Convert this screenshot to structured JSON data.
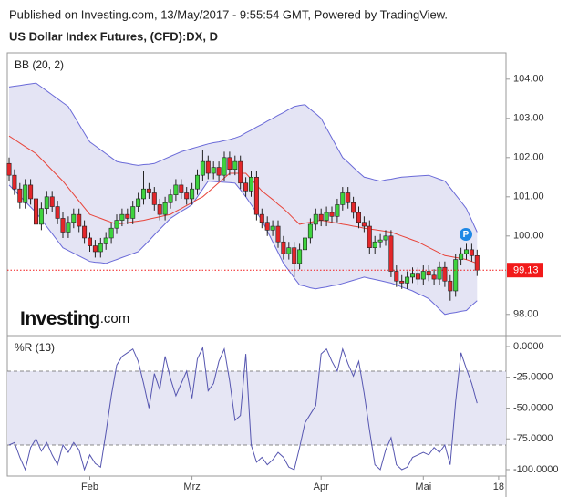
{
  "header": "Published on Investing.com, 13/May/2017 - 9:55:54 GMT, Powered by TradingView.",
  "logo": {
    "brand": "Investing",
    "suffix": ".com"
  },
  "chart_data": [
    {
      "type": "candlestick",
      "title": "US Dollar Index Futures, (CFD):DX, D",
      "indicator": "BB (20, 2)",
      "open": [
        101.85,
        101.55,
        101.2,
        100.85,
        101.3,
        100.95,
        100.3,
        100.7,
        101.0,
        100.75,
        100.45,
        100.1,
        100.35,
        100.55,
        100.25,
        99.95,
        99.75,
        99.6,
        99.8,
        99.95,
        100.2,
        100.4,
        100.55,
        100.45,
        100.75,
        100.95,
        101.2,
        101.1,
        100.8,
        100.55,
        100.85,
        101.05,
        101.3,
        101.1,
        100.95,
        101.2,
        101.55,
        101.9,
        101.6,
        101.75,
        101.55,
        102.0,
        101.7,
        101.9,
        101.35,
        101.15,
        101.5,
        100.55,
        100.35,
        100.15,
        100.25,
        99.85,
        99.55,
        99.7,
        99.3,
        99.65,
        99.95,
        100.3,
        100.55,
        100.4,
        100.6,
        100.5,
        100.8,
        101.1,
        100.85,
        100.6,
        100.35,
        100.25,
        99.7,
        99.85,
        99.9,
        100.0,
        99.1,
        98.85,
        98.8,
        98.95,
        99.05,
        98.9,
        99.1,
        99.0,
        98.9,
        99.2,
        98.85,
        98.6,
        99.4,
        99.55,
        99.65,
        99.5,
        null,
        null,
        null,
        null
      ],
      "high": [
        102.0,
        101.7,
        101.35,
        101.45,
        101.45,
        101.1,
        100.85,
        101.15,
        101.15,
        100.9,
        100.6,
        100.5,
        100.7,
        100.7,
        100.4,
        100.1,
        99.9,
        99.95,
        100.1,
        100.35,
        100.55,
        100.7,
        100.7,
        100.9,
        101.1,
        101.65,
        101.35,
        101.25,
        100.95,
        101.0,
        101.2,
        101.45,
        101.45,
        101.25,
        101.35,
        101.7,
        102.2,
        102.05,
        101.9,
        101.9,
        102.15,
        102.15,
        102.05,
        102.05,
        101.5,
        101.65,
        101.65,
        100.7,
        100.5,
        100.4,
        100.4,
        100.0,
        99.85,
        99.85,
        99.8,
        100.1,
        100.45,
        100.7,
        100.7,
        100.75,
        100.75,
        100.95,
        101.25,
        101.25,
        101.0,
        100.75,
        100.5,
        100.4,
        100.0,
        100.05,
        100.15,
        100.15,
        99.25,
        99.0,
        99.1,
        99.2,
        99.2,
        99.25,
        99.25,
        99.15,
        99.35,
        99.35,
        99.0,
        99.55,
        99.7,
        99.8,
        99.8,
        99.65,
        null,
        null,
        null,
        null
      ],
      "low": [
        101.4,
        101.05,
        100.7,
        100.7,
        100.8,
        100.15,
        100.15,
        100.55,
        100.6,
        100.3,
        99.95,
        99.95,
        100.2,
        100.1,
        99.8,
        99.6,
        99.45,
        99.45,
        99.65,
        99.8,
        100.05,
        100.25,
        100.3,
        100.3,
        100.6,
        100.8,
        100.95,
        100.65,
        100.4,
        100.4,
        100.7,
        100.9,
        100.95,
        100.8,
        100.8,
        101.05,
        101.4,
        101.45,
        101.45,
        101.4,
        101.4,
        101.55,
        101.55,
        101.2,
        101.0,
        101.0,
        100.4,
        100.2,
        100.0,
        100.0,
        99.7,
        99.4,
        99.4,
        98.95,
        99.15,
        99.5,
        99.8,
        100.15,
        100.25,
        100.25,
        100.35,
        100.35,
        100.65,
        100.7,
        100.45,
        100.2,
        100.1,
        99.55,
        99.55,
        99.7,
        99.75,
        98.95,
        98.7,
        98.65,
        98.65,
        98.8,
        98.75,
        98.75,
        98.85,
        98.75,
        98.75,
        98.7,
        98.35,
        98.45,
        99.25,
        99.4,
        99.35,
        98.98,
        null,
        null,
        null,
        null
      ],
      "close": [
        101.55,
        101.2,
        100.85,
        101.3,
        100.95,
        100.3,
        100.7,
        101.0,
        100.75,
        100.45,
        100.1,
        100.35,
        100.55,
        100.25,
        99.95,
        99.75,
        99.6,
        99.8,
        99.95,
        100.2,
        100.4,
        100.55,
        100.45,
        100.75,
        100.95,
        101.2,
        101.1,
        100.8,
        100.55,
        100.85,
        101.05,
        101.3,
        101.1,
        100.95,
        101.2,
        101.55,
        101.9,
        101.6,
        101.75,
        101.55,
        102.0,
        101.7,
        101.9,
        101.35,
        101.15,
        101.5,
        100.55,
        100.35,
        100.15,
        100.25,
        99.85,
        99.55,
        99.7,
        99.3,
        99.65,
        99.95,
        100.3,
        100.55,
        100.4,
        100.6,
        100.5,
        100.8,
        101.1,
        100.85,
        100.6,
        100.35,
        100.25,
        99.7,
        99.85,
        99.9,
        100.0,
        99.1,
        98.85,
        98.8,
        98.95,
        99.05,
        98.9,
        99.1,
        99.0,
        98.9,
        99.2,
        98.85,
        98.6,
        99.4,
        99.55,
        99.65,
        99.5,
        99.13,
        null,
        null,
        null,
        null
      ],
      "bands": {
        "upper": [
          103.8,
          103.82,
          103.84,
          103.86,
          103.88,
          103.9,
          103.8,
          103.7,
          103.6,
          103.5,
          103.4,
          103.3,
          103.08,
          102.85,
          102.62,
          102.4,
          102.3,
          102.2,
          102.1,
          102.0,
          101.9,
          101.87,
          101.85,
          101.82,
          101.8,
          101.82,
          101.83,
          101.85,
          101.91,
          101.97,
          102.03,
          102.09,
          102.15,
          102.19,
          102.23,
          102.27,
          102.31,
          102.35,
          102.38,
          102.4,
          102.43,
          102.46,
          102.5,
          102.55,
          102.63,
          102.7,
          102.78,
          102.85,
          102.93,
          103.0,
          103.08,
          103.15,
          103.23,
          103.3,
          103.33,
          103.35,
          103.23,
          103.12,
          103.0,
          102.75,
          102.5,
          102.25,
          102.0,
          101.88,
          101.75,
          101.62,
          101.5,
          101.47,
          101.43,
          101.4,
          101.43,
          101.45,
          101.48,
          101.5,
          101.51,
          101.52,
          101.53,
          101.54,
          101.55,
          101.5,
          101.45,
          101.4,
          101.23,
          101.05,
          100.88,
          100.7,
          100.4,
          100.1,
          null,
          null,
          null,
          null
        ],
        "middle": [
          102.55,
          102.46,
          102.37,
          102.28,
          102.19,
          102.1,
          101.96,
          101.82,
          101.68,
          101.54,
          101.4,
          101.23,
          101.06,
          100.89,
          100.72,
          100.55,
          100.5,
          100.45,
          100.4,
          100.35,
          100.3,
          100.32,
          100.34,
          100.36,
          100.38,
          100.4,
          100.43,
          100.46,
          100.49,
          100.52,
          100.55,
          100.63,
          100.7,
          100.78,
          100.85,
          100.93,
          101.0,
          101.12,
          101.24,
          101.36,
          101.48,
          101.6,
          101.6,
          101.6,
          101.6,
          101.45,
          101.3,
          101.15,
          101.04,
          100.93,
          100.81,
          100.7,
          100.57,
          100.43,
          100.3,
          100.33,
          100.35,
          100.38,
          100.4,
          100.38,
          100.35,
          100.33,
          100.3,
          100.28,
          100.25,
          100.23,
          100.2,
          100.18,
          100.16,
          100.14,
          100.12,
          100.1,
          100.05,
          100.0,
          99.95,
          99.9,
          99.85,
          99.78,
          99.71,
          99.64,
          99.57,
          99.5,
          99.48,
          99.45,
          99.43,
          99.4,
          99.35,
          99.3,
          null,
          null,
          null,
          null
        ],
        "lower": [
          101.3,
          101.16,
          101.02,
          100.88,
          100.74,
          100.6,
          100.42,
          100.24,
          100.06,
          99.88,
          99.7,
          99.63,
          99.56,
          99.49,
          99.42,
          99.35,
          99.33,
          99.32,
          99.3,
          99.35,
          99.4,
          99.45,
          99.5,
          99.55,
          99.6,
          99.74,
          99.88,
          100.03,
          100.17,
          100.31,
          100.45,
          100.54,
          100.63,
          100.71,
          100.8,
          101.0,
          101.2,
          101.4,
          101.39,
          101.38,
          101.37,
          101.36,
          101.35,
          101.18,
          101.0,
          100.8,
          100.6,
          100.4,
          100.13,
          99.85,
          99.58,
          99.3,
          99.12,
          98.93,
          98.75,
          98.72,
          98.68,
          98.65,
          98.68,
          98.7,
          98.73,
          98.75,
          98.79,
          98.83,
          98.87,
          98.91,
          98.95,
          98.92,
          98.89,
          98.86,
          98.83,
          98.8,
          98.75,
          98.7,
          98.65,
          98.6,
          98.53,
          98.47,
          98.4,
          98.27,
          98.13,
          98.0,
          98.03,
          98.05,
          98.08,
          98.1,
          98.23,
          98.35,
          null,
          null,
          null,
          null
        ]
      },
      "up_color": "#3ed33e",
      "down_color": "#e3262a",
      "band_color": "#6a6ad8",
      "band_fill": "#e4e4f4",
      "middle_color": "#e8443a",
      "ylim": [
        97.53,
        104.67
      ],
      "yticks": [
        {
          "value": 98,
          "label": "98.00"
        },
        {
          "value": 100,
          "label": "100.00"
        },
        {
          "value": 101,
          "label": "101.00"
        },
        {
          "value": 102,
          "label": "102.00"
        },
        {
          "value": 103,
          "label": "103.00"
        },
        {
          "value": 104,
          "label": "104.00"
        }
      ],
      "last_price": 99.13,
      "last_price_color": "#f21a1a",
      "annotation": "P"
    },
    {
      "type": "line",
      "indicator": "%R (13)",
      "categories": [
        null,
        null,
        null,
        null,
        null,
        null,
        null,
        null,
        null,
        null,
        null,
        null,
        null,
        null,
        null,
        "Feb",
        null,
        null,
        null,
        null,
        null,
        null,
        null,
        null,
        null,
        null,
        null,
        null,
        null,
        null,
        null,
        null,
        null,
        null,
        "Mrz",
        null,
        null,
        null,
        null,
        null,
        null,
        null,
        null,
        null,
        null,
        null,
        null,
        null,
        null,
        null,
        null,
        null,
        null,
        null,
        null,
        null,
        null,
        null,
        "Apr",
        null,
        null,
        null,
        null,
        null,
        null,
        null,
        null,
        null,
        null,
        null,
        null,
        null,
        null,
        null,
        null,
        null,
        null,
        "Mai",
        null,
        null,
        null,
        null,
        null,
        null,
        null,
        null,
        null,
        null,
        null,
        null,
        null,
        "18"
      ],
      "values": [
        -80,
        -78,
        -90,
        -100,
        -82,
        -75,
        -85,
        -78,
        -88,
        -96,
        -80,
        -86,
        -78,
        -84,
        -100,
        -88,
        -95,
        -98,
        -70,
        -40,
        -15,
        -8,
        -5,
        -2,
        -12,
        -30,
        -50,
        -22,
        -35,
        -8,
        -26,
        -40,
        -30,
        -20,
        -42,
        -10,
        -1,
        -36,
        -30,
        -12,
        -2,
        -28,
        -60,
        -56,
        -6,
        -80,
        -94,
        -90,
        -96,
        -92,
        -86,
        -90,
        -98,
        -100,
        -82,
        -62,
        -55,
        -48,
        -6,
        -2,
        -12,
        -20,
        -2,
        -14,
        -24,
        -12,
        -38,
        -68,
        -96,
        -100,
        -84,
        -74,
        -96,
        -100,
        -98,
        -90,
        -88,
        -86,
        -88,
        -82,
        -86,
        -80,
        -96,
        -45,
        -5,
        -18,
        -30,
        -46,
        null,
        null,
        null,
        null
      ],
      "color": "#5656b0",
      "level_fill": "#e6e6f4",
      "levels": [
        -20,
        -80
      ],
      "ylim": [
        -105.2,
        8.9
      ],
      "yticks": [
        {
          "value": 0,
          "label": "0.0000"
        },
        {
          "value": -25,
          "label": "-25.0000"
        },
        {
          "value": -50,
          "label": "-50.0000"
        },
        {
          "value": -75,
          "label": "-75.0000"
        },
        {
          "value": -100,
          "label": "-100.0000"
        }
      ]
    }
  ]
}
